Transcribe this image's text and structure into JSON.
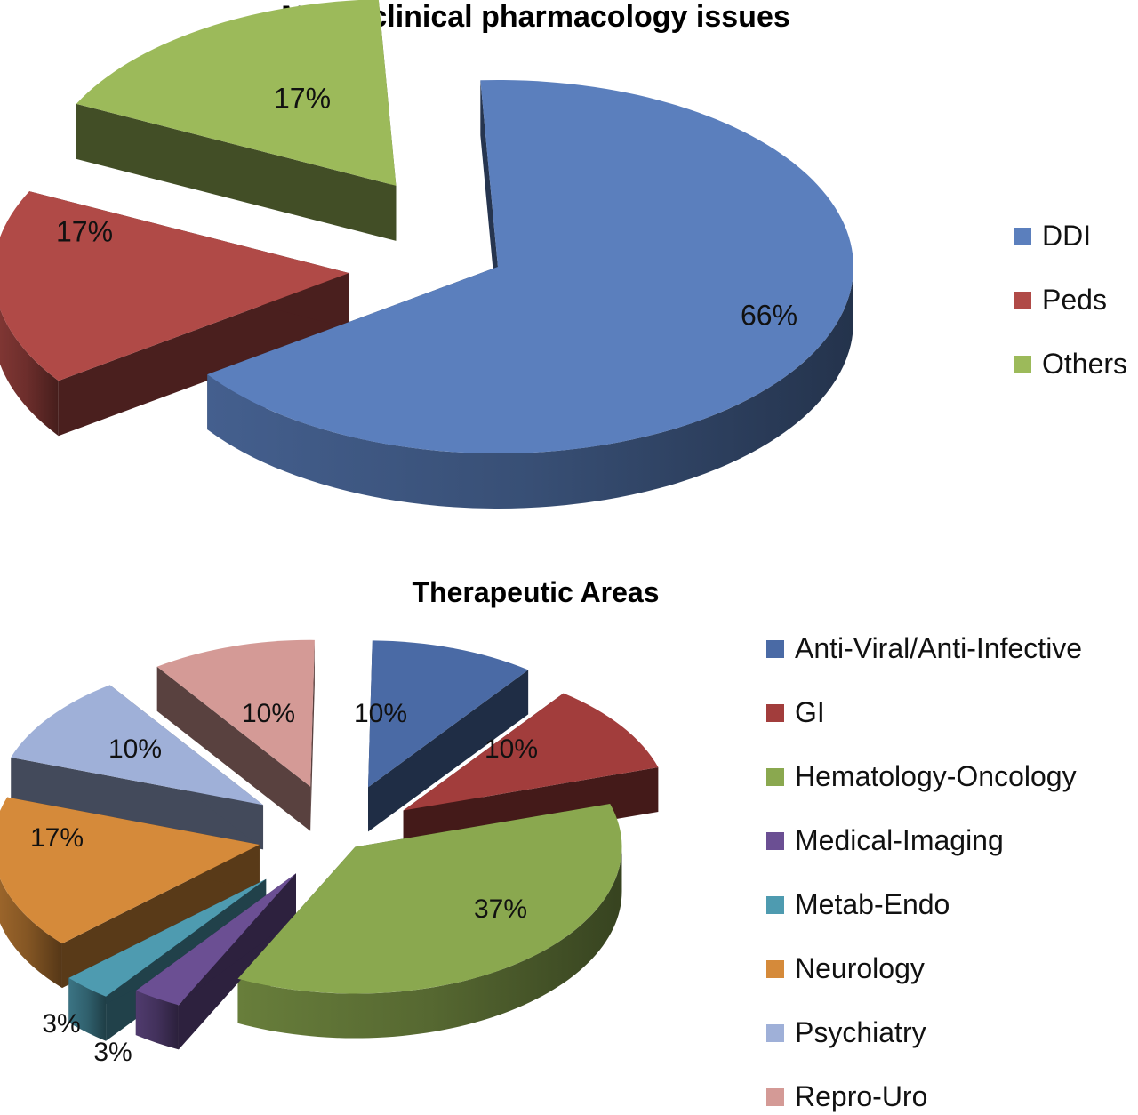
{
  "chart_data": [
    {
      "type": "pie",
      "title": "Major clinical pharmacology issues",
      "categories": [
        "DDI",
        "Peds",
        "Others"
      ],
      "values": [
        66,
        17,
        17
      ],
      "labels": [
        "66%",
        "17%",
        "17%"
      ],
      "colors": [
        "#5b7fbd",
        "#b04a47",
        "#9cba5a"
      ],
      "legend_placement": "right",
      "style": "3d-exploded"
    },
    {
      "type": "pie",
      "title": "Therapeutic Areas",
      "categories": [
        "Anti-Viral/Anti-Infective",
        "GI",
        "Hematology-Oncology",
        "Medical-Imaging",
        "Metab-Endo",
        "Neurology",
        "Psychiatry",
        "Repro-Uro"
      ],
      "values": [
        10,
        10,
        37,
        3,
        3,
        17,
        10,
        10
      ],
      "labels": [
        "10%",
        "10%",
        "37%",
        "3%",
        "3%",
        "17%",
        "10%",
        "10%"
      ],
      "colors": [
        "#4a6aa5",
        "#a23d3c",
        "#8aa84f",
        "#6b4f93",
        "#4e9bb0",
        "#d58a3a",
        "#9fb0d8",
        "#d49a96"
      ],
      "legend_placement": "right",
      "style": "3d-exploded"
    }
  ]
}
